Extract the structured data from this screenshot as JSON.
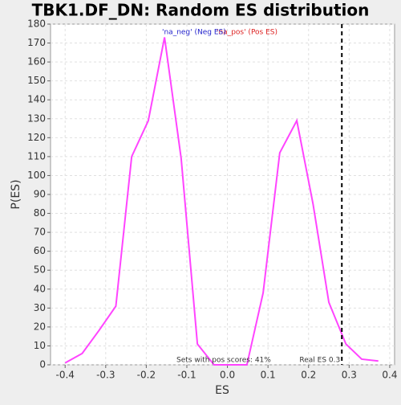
{
  "chart_data": {
    "type": "line",
    "title": "TBK1.DF_DN: Random ES distribution",
    "xlabel": "ES",
    "ylabel": "P(ES)",
    "x": [
      -0.4,
      -0.358,
      -0.317,
      -0.275,
      -0.236,
      -0.195,
      -0.155,
      -0.114,
      -0.074,
      -0.033,
      0.007,
      0.048,
      0.088,
      0.129,
      0.171,
      0.211,
      0.25,
      0.292,
      0.331,
      0.372
    ],
    "series": [
      {
        "color": "#ff44ff",
        "values": [
          1,
          6,
          18,
          31,
          110,
          129,
          173,
          109,
          11,
          0,
          0,
          0,
          38,
          112,
          129,
          85,
          33,
          11,
          3,
          2
        ]
      }
    ],
    "xlim": [
      -0.436,
      0.412
    ],
    "ylim": [
      0,
      180
    ],
    "xticks": [
      -0.4,
      -0.3,
      -0.2,
      -0.1,
      {
        "value": 0,
        "label": "0.0"
      },
      0.1,
      0.2,
      0.3,
      0.4
    ],
    "yticks": [
      0,
      10,
      20,
      30,
      40,
      50,
      60,
      70,
      80,
      90,
      100,
      110,
      120,
      130,
      140,
      150,
      160,
      170,
      180
    ],
    "grid": true,
    "real_es": 0.282,
    "real_es_label": "Real ES 0.3",
    "pos_scores_label": "Sets with pos scores: 41%",
    "neg_label": "'na_neg' (Neg ES)",
    "pos_label": "'na_pos' (Pos ES)"
  }
}
